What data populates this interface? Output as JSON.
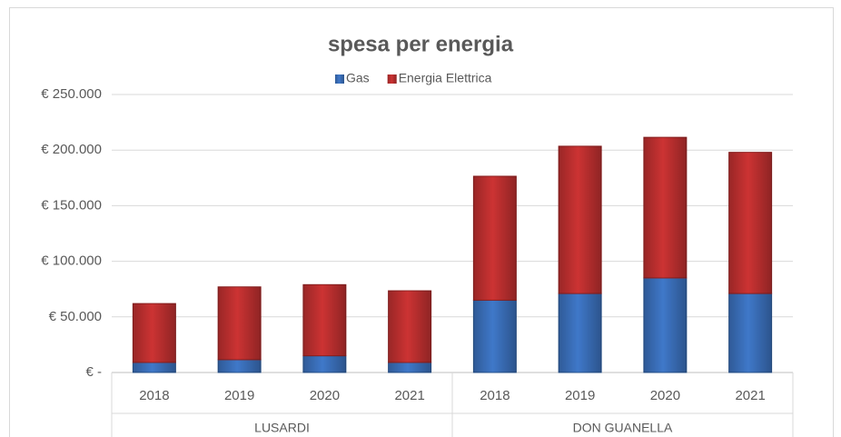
{
  "chart_data": {
    "type": "stacked_bar",
    "title": "spesa per energia",
    "categories": [
      "2018",
      "2019",
      "2020",
      "2021",
      "2018",
      "2019",
      "2020",
      "2021"
    ],
    "groups": [
      "LUSARDI",
      "DON GUANELLA"
    ],
    "series": [
      {
        "name": "Gas",
        "color": "#3f78c9",
        "values": [
          9000,
          11500,
          15000,
          9000,
          65000,
          71000,
          85000,
          71000
        ]
      },
      {
        "name": "Energia Elettrica",
        "color": "#cc3333",
        "values": [
          53000,
          65500,
          64000,
          64500,
          111500,
          132500,
          126500,
          127000
        ]
      }
    ],
    "ylim": [
      0,
      250000
    ],
    "yticks": [
      {
        "value": 0,
        "label": "€ -"
      },
      {
        "value": 50000,
        "label": "€ 50.000"
      },
      {
        "value": 100000,
        "label": "€ 100.000"
      },
      {
        "value": 150000,
        "label": "€ 150.000"
      },
      {
        "value": 200000,
        "label": "€ 200.000"
      },
      {
        "value": 250000,
        "label": "€ 250.000"
      }
    ],
    "grid": true,
    "legend": "top"
  }
}
